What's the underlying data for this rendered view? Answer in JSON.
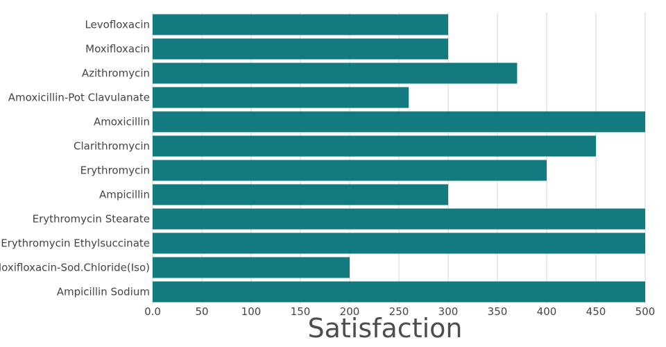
{
  "chart_data": {
    "type": "bar",
    "orientation": "horizontal",
    "categories": [
      "Levofloxacin",
      "Moxifloxacin",
      "Azithromycin",
      "Amoxicillin-Pot Clavulanate",
      "Amoxicillin",
      "Clarithromycin",
      "Erythromycin",
      "Ampicillin",
      "Erythromycin Stearate",
      "Erythromycin Ethylsuccinate",
      "Moxifloxacin-Sod.Chloride(Iso)",
      "Ampicillin Sodium"
    ],
    "values": [
      300,
      300,
      370,
      260,
      500,
      450,
      400,
      300,
      500,
      500,
      200,
      500
    ],
    "xlabel": "Satisfaction",
    "ylabel": "",
    "xlim": [
      0,
      500
    ],
    "xticks": [
      0,
      50,
      100,
      150,
      200,
      250,
      300,
      350,
      400,
      450,
      500
    ],
    "xtick_labels": [
      "0.0",
      "50",
      "100",
      "150",
      "200",
      "250",
      "300",
      "350",
      "400",
      "450",
      "500"
    ],
    "grid": "vertical",
    "legend": "none",
    "colors": {
      "bar": "#137a7f",
      "grid": "#d6d6d6",
      "text": "#444444"
    }
  }
}
